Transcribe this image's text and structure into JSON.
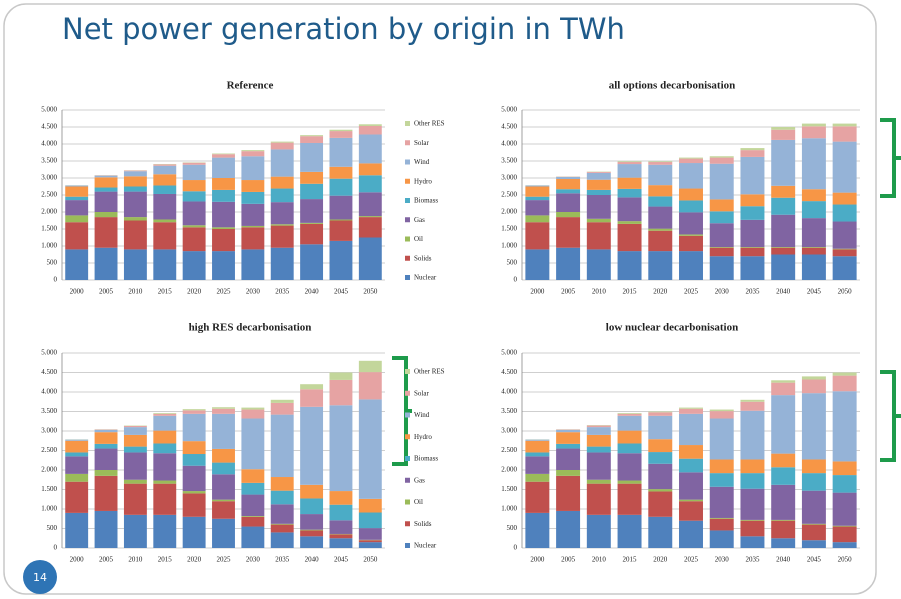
{
  "slide": {
    "title": "Net power generation by origin in TWh",
    "page_number": "14"
  },
  "chart_data": [
    {
      "type": "stacked_bar",
      "title": "Reference",
      "legend": true,
      "categories": [
        "2000",
        "2005",
        "2010",
        "2015",
        "2020",
        "2025",
        "2030",
        "2035",
        "2040",
        "2045",
        "2050"
      ],
      "ylim": [
        0,
        5000
      ],
      "yticks": [
        0,
        500,
        {
          "value": 1000,
          "label": "1.000"
        },
        {
          "value": 1500,
          "label": "1.500"
        },
        {
          "value": 2000,
          "label": "2.000"
        },
        {
          "value": 2500,
          "label": "2.500"
        },
        {
          "value": 3000,
          "label": "3.000"
        },
        {
          "value": 3500,
          "label": "3.500"
        },
        {
          "value": 4000,
          "label": "4.000"
        },
        {
          "value": 4500,
          "label": "4.500"
        },
        {
          "value": 5000,
          "label": "5.000"
        }
      ],
      "grid": true,
      "series": [
        {
          "name": "Nuclear",
          "color": "#4f81bd",
          "values": [
            900,
            950,
            900,
            900,
            850,
            850,
            900,
            950,
            1050,
            1150,
            1250
          ]
        },
        {
          "name": "Solids",
          "color": "#c0504d",
          "values": [
            800,
            900,
            850,
            800,
            700,
            650,
            650,
            650,
            600,
            600,
            600
          ]
        },
        {
          "name": "Oil",
          "color": "#9bbb59",
          "values": [
            200,
            150,
            100,
            80,
            60,
            50,
            40,
            40,
            30,
            30,
            30
          ]
        },
        {
          "name": "Gas",
          "color": "#8064a2",
          "values": [
            450,
            600,
            750,
            750,
            700,
            750,
            650,
            650,
            700,
            700,
            700
          ]
        },
        {
          "name": "Biomass",
          "color": "#4bacc6",
          "values": [
            100,
            120,
            150,
            250,
            300,
            350,
            350,
            400,
            450,
            500,
            500
          ]
        },
        {
          "name": "Hydro",
          "color": "#f79646",
          "values": [
            300,
            300,
            300,
            330,
            330,
            350,
            350,
            350,
            350,
            350,
            350
          ]
        },
        {
          "name": "Wind",
          "color": "#95b3d7",
          "values": [
            30,
            50,
            150,
            250,
            450,
            600,
            700,
            800,
            850,
            850,
            850
          ]
        },
        {
          "name": "Solar",
          "color": "#e6a3a3",
          "values": [
            0,
            10,
            20,
            40,
            60,
            100,
            150,
            200,
            200,
            200,
            250
          ]
        },
        {
          "name": "Other RES",
          "color": "#c3d69b",
          "values": [
            5,
            5,
            5,
            10,
            10,
            20,
            30,
            30,
            30,
            40,
            50
          ]
        }
      ]
    },
    {
      "type": "stacked_bar",
      "title": "all options decarbonisation",
      "legend": false,
      "categories": [
        "2000",
        "2005",
        "2010",
        "2015",
        "2020",
        "2025",
        "2030",
        "2035",
        "2040",
        "2045",
        "2050"
      ],
      "ylim": [
        0,
        5000
      ],
      "yticks": [
        0,
        500,
        {
          "value": 1000,
          "label": "1.000"
        },
        {
          "value": 1500,
          "label": "1.500"
        },
        {
          "value": 2000,
          "label": "2.000"
        },
        {
          "value": 2500,
          "label": "2.500"
        },
        {
          "value": 3000,
          "label": "3.000"
        },
        {
          "value": 3500,
          "label": "3.500"
        },
        {
          "value": 4000,
          "label": "4.000"
        },
        {
          "value": 4500,
          "label": "4.500"
        },
        {
          "value": 5000,
          "label": "5.000"
        }
      ],
      "grid": true,
      "series": [
        {
          "name": "Nuclear",
          "color": "#4f81bd",
          "values": [
            900,
            950,
            900,
            850,
            850,
            850,
            700,
            700,
            750,
            750,
            700
          ]
        },
        {
          "name": "Solids",
          "color": "#c0504d",
          "values": [
            800,
            900,
            800,
            800,
            600,
            450,
            250,
            250,
            200,
            200,
            200
          ]
        },
        {
          "name": "Oil",
          "color": "#9bbb59",
          "values": [
            200,
            150,
            100,
            80,
            60,
            40,
            20,
            20,
            20,
            20,
            20
          ]
        },
        {
          "name": "Gas",
          "color": "#8064a2",
          "values": [
            450,
            550,
            700,
            700,
            650,
            650,
            700,
            800,
            950,
            850,
            800
          ]
        },
        {
          "name": "Biomass",
          "color": "#4bacc6",
          "values": [
            100,
            120,
            150,
            250,
            300,
            350,
            350,
            400,
            500,
            500,
            500
          ]
        },
        {
          "name": "Hydro",
          "color": "#f79646",
          "values": [
            300,
            300,
            300,
            330,
            330,
            350,
            350,
            350,
            350,
            350,
            350
          ]
        },
        {
          "name": "Wind",
          "color": "#95b3d7",
          "values": [
            30,
            60,
            200,
            400,
            600,
            750,
            1050,
            1100,
            1350,
            1500,
            1500
          ]
        },
        {
          "name": "Solar",
          "color": "#e6a3a3",
          "values": [
            0,
            10,
            30,
            60,
            80,
            130,
            180,
            200,
            300,
            350,
            450
          ]
        },
        {
          "name": "Other RES",
          "color": "#c3d69b",
          "values": [
            5,
            5,
            10,
            20,
            20,
            30,
            40,
            60,
            80,
            80,
            80
          ]
        }
      ]
    },
    {
      "type": "stacked_bar",
      "title": "high RES decarbonisation",
      "legend": true,
      "categories": [
        "2000",
        "2005",
        "2010",
        "2015",
        "2020",
        "2025",
        "2030",
        "2035",
        "2040",
        "2045",
        "2050"
      ],
      "ylim": [
        0,
        5000
      ],
      "yticks": [
        0,
        500,
        {
          "value": 1000,
          "label": "1.000"
        },
        {
          "value": 1500,
          "label": "1.500"
        },
        {
          "value": 2000,
          "label": "2.000"
        },
        {
          "value": 2500,
          "label": "2.500"
        },
        {
          "value": 3000,
          "label": "3.000"
        },
        {
          "value": 3500,
          "label": "3.500"
        },
        {
          "value": 4000,
          "label": "4.000"
        },
        {
          "value": 4500,
          "label": "4.500"
        },
        {
          "value": 5000,
          "label": "5.000"
        }
      ],
      "grid": true,
      "series": [
        {
          "name": "Nuclear",
          "color": "#4f81bd",
          "values": [
            900,
            950,
            850,
            850,
            800,
            750,
            550,
            400,
            300,
            250,
            150
          ]
        },
        {
          "name": "Solids",
          "color": "#c0504d",
          "values": [
            800,
            900,
            800,
            800,
            600,
            450,
            250,
            200,
            150,
            100,
            50
          ]
        },
        {
          "name": "Oil",
          "color": "#9bbb59",
          "values": [
            200,
            150,
            100,
            80,
            60,
            40,
            20,
            20,
            20,
            10,
            10
          ]
        },
        {
          "name": "Gas",
          "color": "#8064a2",
          "values": [
            450,
            550,
            700,
            700,
            650,
            650,
            550,
            500,
            400,
            350,
            300
          ]
        },
        {
          "name": "Biomass",
          "color": "#4bacc6",
          "values": [
            100,
            120,
            150,
            250,
            300,
            300,
            300,
            350,
            400,
            400,
            400
          ]
        },
        {
          "name": "Hydro",
          "color": "#f79646",
          "values": [
            300,
            300,
            300,
            330,
            330,
            350,
            350,
            350,
            350,
            350,
            350
          ]
        },
        {
          "name": "Wind",
          "color": "#95b3d7",
          "values": [
            30,
            60,
            200,
            380,
            700,
            900,
            1300,
            1600,
            2000,
            2200,
            2550
          ]
        },
        {
          "name": "Solar",
          "color": "#e6a3a3",
          "values": [
            0,
            10,
            30,
            50,
            90,
            130,
            230,
            300,
            450,
            650,
            700
          ]
        },
        {
          "name": "Other RES",
          "color": "#c3d69b",
          "values": [
            5,
            5,
            10,
            20,
            30,
            40,
            50,
            80,
            130,
            190,
            290
          ]
        }
      ]
    },
    {
      "type": "stacked_bar",
      "title": "low nuclear decarbonisation",
      "legend": false,
      "categories": [
        "2000",
        "2005",
        "2010",
        "2015",
        "2020",
        "2025",
        "2030",
        "2035",
        "2040",
        "2045",
        "2050"
      ],
      "ylim": [
        0,
        5000
      ],
      "yticks": [
        0,
        500,
        {
          "value": 1000,
          "label": "1.000"
        },
        {
          "value": 1500,
          "label": "1.500"
        },
        {
          "value": 2000,
          "label": "2.000"
        },
        {
          "value": 2500,
          "label": "2.500"
        },
        {
          "value": 3000,
          "label": "3.000"
        },
        {
          "value": 3500,
          "label": "3.500"
        },
        {
          "value": 4000,
          "label": "4.000"
        },
        {
          "value": 4500,
          "label": "4.500"
        },
        {
          "value": 5000,
          "label": "5.000"
        }
      ],
      "grid": true,
      "series": [
        {
          "name": "Nuclear",
          "color": "#4f81bd",
          "values": [
            900,
            950,
            850,
            850,
            800,
            700,
            450,
            300,
            250,
            200,
            150
          ]
        },
        {
          "name": "Solids",
          "color": "#c0504d",
          "values": [
            800,
            900,
            800,
            800,
            650,
            500,
            300,
            400,
            450,
            400,
            400
          ]
        },
        {
          "name": "Oil",
          "color": "#9bbb59",
          "values": [
            200,
            150,
            100,
            80,
            60,
            40,
            20,
            20,
            20,
            20,
            20
          ]
        },
        {
          "name": "Gas",
          "color": "#8064a2",
          "values": [
            450,
            550,
            700,
            700,
            650,
            700,
            800,
            800,
            900,
            850,
            850
          ]
        },
        {
          "name": "Biomass",
          "color": "#4bacc6",
          "values": [
            100,
            120,
            150,
            250,
            300,
            350,
            350,
            400,
            450,
            450,
            450
          ]
        },
        {
          "name": "Hydro",
          "color": "#f79646",
          "values": [
            300,
            300,
            300,
            330,
            330,
            350,
            350,
            350,
            350,
            350,
            350
          ]
        },
        {
          "name": "Wind",
          "color": "#95b3d7",
          "values": [
            30,
            60,
            200,
            380,
            600,
            800,
            1050,
            1250,
            1500,
            1700,
            1800
          ]
        },
        {
          "name": "Solar",
          "color": "#e6a3a3",
          "values": [
            0,
            10,
            40,
            50,
            90,
            130,
            190,
            230,
            320,
            350,
            400
          ]
        },
        {
          "name": "Other RES",
          "color": "#c3d69b",
          "values": [
            5,
            5,
            10,
            20,
            20,
            30,
            40,
            50,
            60,
            80,
            80
          ]
        }
      ]
    }
  ]
}
